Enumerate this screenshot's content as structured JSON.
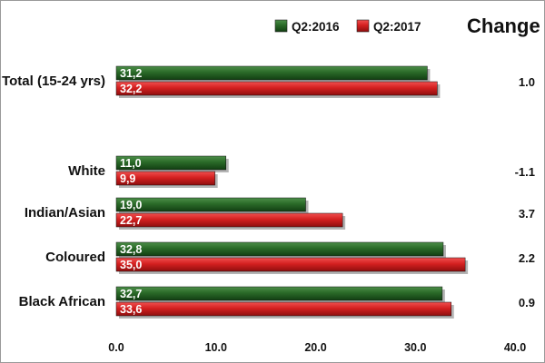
{
  "chart_data": {
    "type": "bar",
    "orientation": "horizontal",
    "categories": [
      "Total (15-24 yrs)",
      "White",
      "Indian/Asian",
      "Coloured",
      "Black African"
    ],
    "series": [
      {
        "name": "Q2:2016",
        "values": [
          31.2,
          11.0,
          19.0,
          32.8,
          32.7
        ],
        "labels": [
          "31,2",
          "11,0",
          "19,0",
          "32,8",
          "32,7"
        ],
        "color": "#1f5a1f"
      },
      {
        "name": "Q2:2017",
        "values": [
          32.2,
          9.9,
          22.7,
          35.0,
          33.6
        ],
        "labels": [
          "32,2",
          "9,9",
          "22,7",
          "35,0",
          "33,6"
        ],
        "color": "#d42020"
      }
    ],
    "change_header": "Change",
    "change": [
      "1.0",
      "-1.1",
      "3.7",
      "2.2",
      "0.9"
    ],
    "xlim": [
      0,
      40
    ],
    "xticks": [
      "0.0",
      "10.0",
      "20.0",
      "30.0",
      "40.0"
    ],
    "legend": "top-right",
    "grid": false
  }
}
